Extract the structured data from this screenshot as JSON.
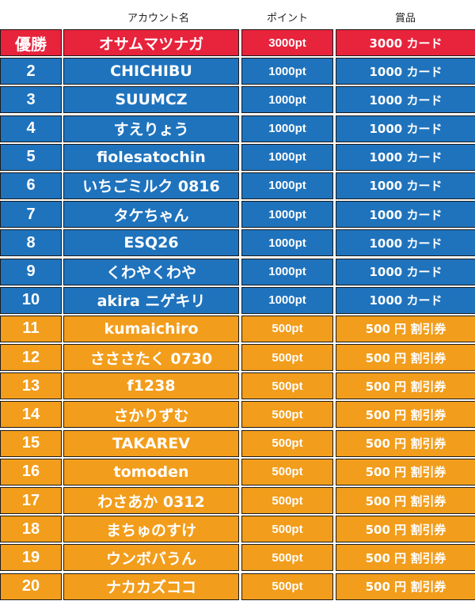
{
  "header": {
    "name_label": "アカウント名",
    "point_label": "ポイント",
    "prize_label": "賞品"
  },
  "rows": [
    {
      "rank": "優勝",
      "name": "オサムマツナガ",
      "points": "3000pt",
      "prize": "3000 カード",
      "tier": "red"
    },
    {
      "rank": "2",
      "name": "CHICHIBU",
      "points": "1000pt",
      "prize": "1000 カード",
      "tier": "blue"
    },
    {
      "rank": "3",
      "name": "SUUMCZ",
      "points": "1000pt",
      "prize": "1000 カード",
      "tier": "blue"
    },
    {
      "rank": "4",
      "name": "すえりょう",
      "points": "1000pt",
      "prize": "1000 カード",
      "tier": "blue"
    },
    {
      "rank": "5",
      "name": "fiolesatochin",
      "points": "1000pt",
      "prize": "1000 カード",
      "tier": "blue"
    },
    {
      "rank": "6",
      "name": "いちごミルク 0816",
      "points": "1000pt",
      "prize": "1000 カード",
      "tier": "blue"
    },
    {
      "rank": "7",
      "name": "タケちゃん",
      "points": "1000pt",
      "prize": "1000 カード",
      "tier": "blue"
    },
    {
      "rank": "8",
      "name": "ESQ26",
      "points": "1000pt",
      "prize": "1000 カード",
      "tier": "blue"
    },
    {
      "rank": "9",
      "name": "くわやくわや",
      "points": "1000pt",
      "prize": "1000 カード",
      "tier": "blue"
    },
    {
      "rank": "10",
      "name": "akira ニゲキリ",
      "points": "1000pt",
      "prize": "1000 カード",
      "tier": "blue"
    },
    {
      "rank": "11",
      "name": "kumaichiro",
      "points": "500pt",
      "prize": "500 円 割引券",
      "tier": "orange"
    },
    {
      "rank": "12",
      "name": "さささたく 0730",
      "points": "500pt",
      "prize": "500 円 割引券",
      "tier": "orange"
    },
    {
      "rank": "13",
      "name": "f1238",
      "points": "500pt",
      "prize": "500 円 割引券",
      "tier": "orange"
    },
    {
      "rank": "14",
      "name": "さかりずむ",
      "points": "500pt",
      "prize": "500 円 割引券",
      "tier": "orange"
    },
    {
      "rank": "15",
      "name": "TAKAREV",
      "points": "500pt",
      "prize": "500 円 割引券",
      "tier": "orange"
    },
    {
      "rank": "16",
      "name": "tomoden",
      "points": "500pt",
      "prize": "500 円 割引券",
      "tier": "orange"
    },
    {
      "rank": "17",
      "name": "わさあか 0312",
      "points": "500pt",
      "prize": "500 円 割引券",
      "tier": "orange"
    },
    {
      "rank": "18",
      "name": "まちゅのすけ",
      "points": "500pt",
      "prize": "500 円 割引券",
      "tier": "orange"
    },
    {
      "rank": "19",
      "name": "ウンボバうん",
      "points": "500pt",
      "prize": "500 円 割引券",
      "tier": "orange"
    },
    {
      "rank": "20",
      "name": "ナカカズココ",
      "points": "500pt",
      "prize": "500 円 割引券",
      "tier": "orange"
    }
  ]
}
